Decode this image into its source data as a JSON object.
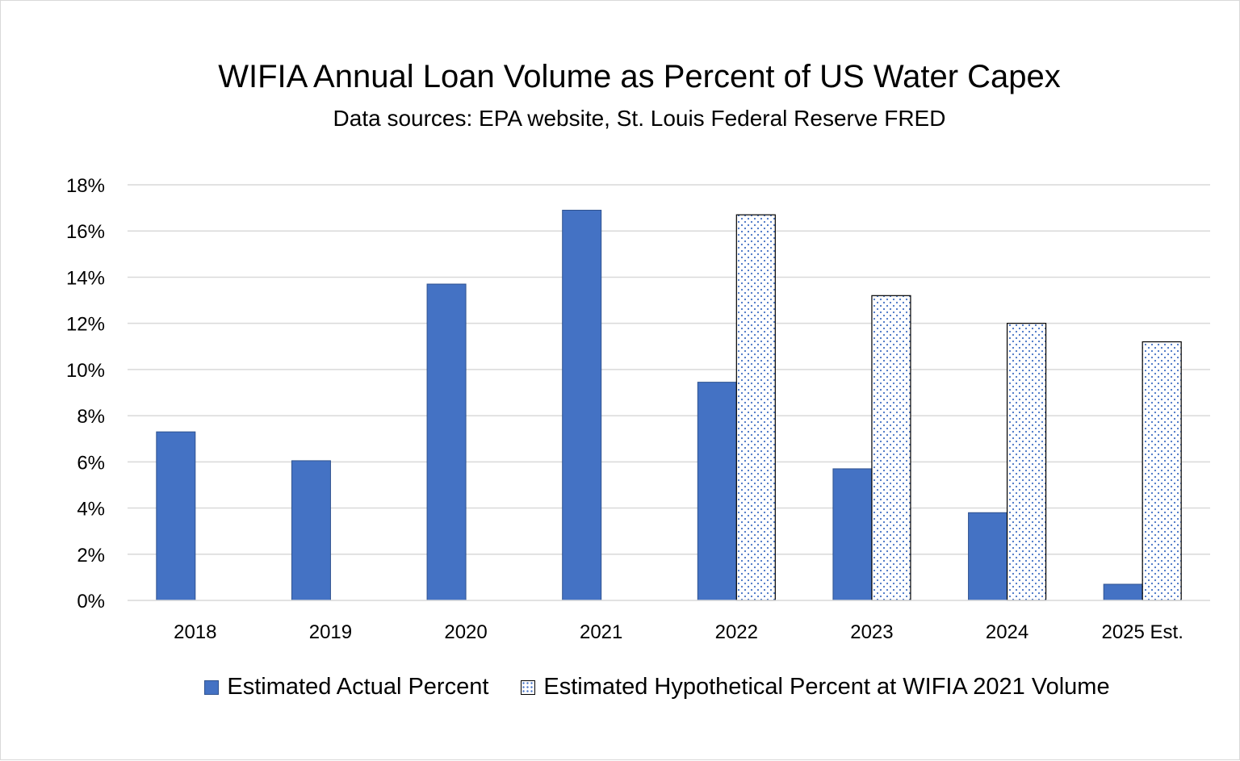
{
  "chart_data": {
    "type": "bar",
    "title": "WIFIA Annual Loan Volume as Percent of US Water Capex",
    "subtitle": "Data sources: EPA website, St. Louis Federal Reserve FRED",
    "categories": [
      "2018",
      "2019",
      "2020",
      "2021",
      "2022",
      "2023",
      "2024",
      "2025 Est."
    ],
    "series": [
      {
        "name": "Estimated Actual Percent",
        "values": [
          7.3,
          6.05,
          13.7,
          16.9,
          9.45,
          5.7,
          3.8,
          0.7
        ],
        "color": "#4472c4",
        "pattern": "solid"
      },
      {
        "name": "Estimated Hypothetical Percent at WIFIA 2021 Volume",
        "values": [
          null,
          null,
          null,
          null,
          16.7,
          13.2,
          12.0,
          11.2
        ],
        "color": "#4472c4",
        "pattern": "dotted"
      }
    ],
    "ylim": [
      0,
      18
    ],
    "yticks": [
      "0%",
      "2%",
      "4%",
      "6%",
      "8%",
      "10%",
      "12%",
      "14%",
      "16%",
      "18%"
    ],
    "ytick_values": [
      0,
      2,
      4,
      6,
      8,
      10,
      12,
      14,
      16,
      18
    ],
    "xlabel": "",
    "ylabel": "",
    "grid": true,
    "legend_position": "bottom"
  }
}
